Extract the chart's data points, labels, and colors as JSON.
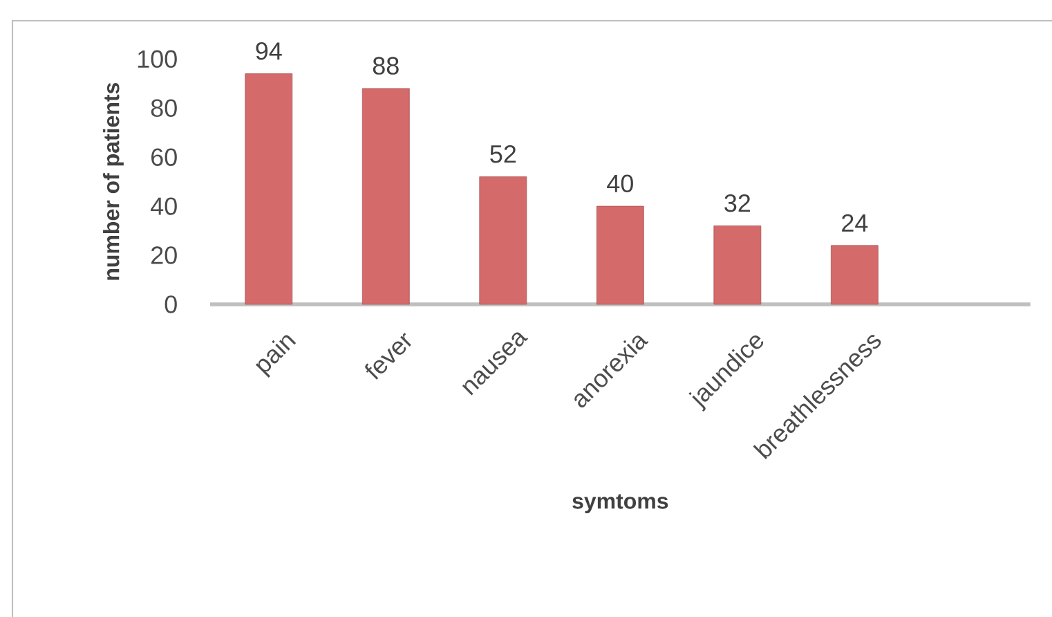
{
  "chart_data": {
    "type": "bar",
    "categories": [
      "pain",
      "fever",
      "nausea",
      "anorexia",
      "jaundice",
      "breathlessness"
    ],
    "values": [
      94,
      88,
      52,
      40,
      32,
      24
    ],
    "color": "#d46a6a",
    "xlabel": "symtoms",
    "ylabel": "number of patients",
    "ylim": [
      0,
      100
    ],
    "yticks": [
      0,
      20,
      40,
      60,
      80,
      100
    ],
    "data_labels": true,
    "grid": false
  }
}
